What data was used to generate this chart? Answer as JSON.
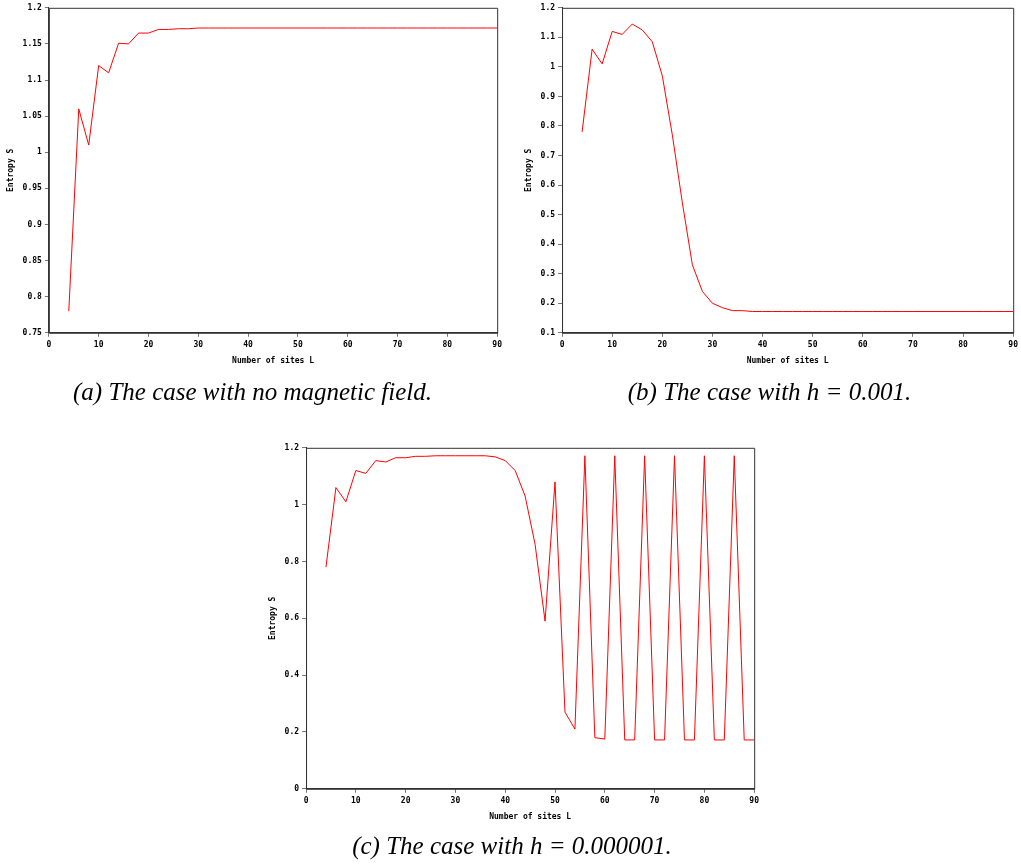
{
  "chart_data": [
    {
      "type": "line",
      "title": "(a) The case with no magnetic field.",
      "xlabel": "Number of sites L",
      "ylabel": "Entropy S",
      "color": "#ff0000",
      "marker": "none",
      "x": [
        4,
        6,
        8,
        10,
        12,
        14,
        16,
        18,
        20,
        22,
        24,
        26,
        28,
        30,
        32,
        34,
        36,
        38,
        40,
        42,
        44,
        46,
        48,
        50,
        52,
        54,
        56,
        58,
        60,
        62,
        64,
        66,
        68,
        70,
        72,
        74,
        76,
        78,
        80,
        82,
        84,
        86,
        88,
        90
      ],
      "values": [
        0.78,
        1.06,
        1.01,
        1.12,
        1.11,
        1.151,
        1.15,
        1.165,
        1.165,
        1.17,
        1.17,
        1.171,
        1.171,
        1.172,
        1.172,
        1.172,
        1.172,
        1.172,
        1.172,
        1.172,
        1.172,
        1.172,
        1.172,
        1.172,
        1.172,
        1.172,
        1.172,
        1.172,
        1.172,
        1.172,
        1.172,
        1.172,
        1.172,
        1.172,
        1.172,
        1.172,
        1.172,
        1.172,
        1.172,
        1.172,
        1.172,
        1.172,
        1.172,
        1.172
      ],
      "xlim": [
        0,
        90
      ],
      "ylim": [
        0.75,
        1.2
      ],
      "xticks": [
        0,
        10,
        20,
        30,
        40,
        50,
        60,
        70,
        80,
        90
      ],
      "yticks": [
        0.75,
        0.8,
        0.85,
        0.9,
        0.95,
        1,
        1.05,
        1.1,
        1.15,
        1.2
      ]
    },
    {
      "type": "line",
      "title": "(b) The case with h = 0.001.",
      "xlabel": "Number of sites L",
      "ylabel": "Entropy S",
      "color": "#ff0000",
      "marker": "none",
      "x": [
        4,
        6,
        8,
        10,
        12,
        14,
        16,
        18,
        20,
        22,
        24,
        26,
        28,
        30,
        32,
        34,
        36,
        38,
        40,
        42,
        44,
        46,
        48,
        50,
        52,
        54,
        56,
        58,
        60,
        62,
        64,
        66,
        68,
        70,
        72,
        74,
        76,
        78,
        80,
        82,
        84,
        86,
        88,
        90
      ],
      "values": [
        0.78,
        1.06,
        1.01,
        1.12,
        1.11,
        1.145,
        1.125,
        1.085,
        0.97,
        0.77,
        0.54,
        0.33,
        0.24,
        0.2,
        0.185,
        0.175,
        0.175,
        0.172,
        0.172,
        0.172,
        0.172,
        0.172,
        0.172,
        0.172,
        0.172,
        0.172,
        0.172,
        0.172,
        0.172,
        0.172,
        0.172,
        0.172,
        0.172,
        0.172,
        0.172,
        0.172,
        0.172,
        0.172,
        0.172,
        0.172,
        0.172,
        0.172,
        0.172,
        0.172
      ],
      "xlim": [
        0,
        90
      ],
      "ylim": [
        0.1,
        1.2
      ],
      "xticks": [
        0,
        10,
        20,
        30,
        40,
        50,
        60,
        70,
        80,
        90
      ],
      "yticks": [
        0.1,
        0.2,
        0.3,
        0.4,
        0.5,
        0.6,
        0.7,
        0.8,
        0.9,
        1,
        1.1,
        1.2
      ]
    },
    {
      "type": "line",
      "title": "(c) The case with h = 0.000001.",
      "xlabel": "Number of sites L",
      "ylabel": "Entropy S",
      "color": "#ff0000",
      "marker": "none",
      "x": [
        4,
        6,
        8,
        10,
        12,
        14,
        16,
        18,
        20,
        22,
        24,
        26,
        28,
        30,
        32,
        34,
        36,
        38,
        40,
        42,
        44,
        46,
        48,
        50,
        52,
        54,
        56,
        58,
        60,
        62,
        64,
        66,
        68,
        70,
        72,
        74,
        76,
        78,
        80,
        82,
        84,
        86,
        88,
        90
      ],
      "values": [
        0.78,
        1.06,
        1.01,
        1.12,
        1.11,
        1.155,
        1.15,
        1.165,
        1.165,
        1.17,
        1.17,
        1.172,
        1.172,
        1.172,
        1.172,
        1.172,
        1.172,
        1.168,
        1.155,
        1.12,
        1.03,
        0.86,
        0.59,
        1.08,
        0.27,
        0.21,
        1.172,
        0.18,
        0.175,
        1.172,
        0.172,
        0.172,
        1.172,
        0.172,
        0.172,
        1.172,
        0.172,
        0.172,
        1.172,
        0.172,
        0.172,
        1.172,
        0.172,
        0.172
      ],
      "xlim": [
        0,
        90
      ],
      "ylim": [
        0,
        1.2
      ],
      "xticks": [
        0,
        10,
        20,
        30,
        40,
        50,
        60,
        70,
        80,
        90
      ],
      "yticks": [
        0,
        0.2,
        0.4,
        0.6,
        0.8,
        1,
        1.2
      ]
    }
  ]
}
